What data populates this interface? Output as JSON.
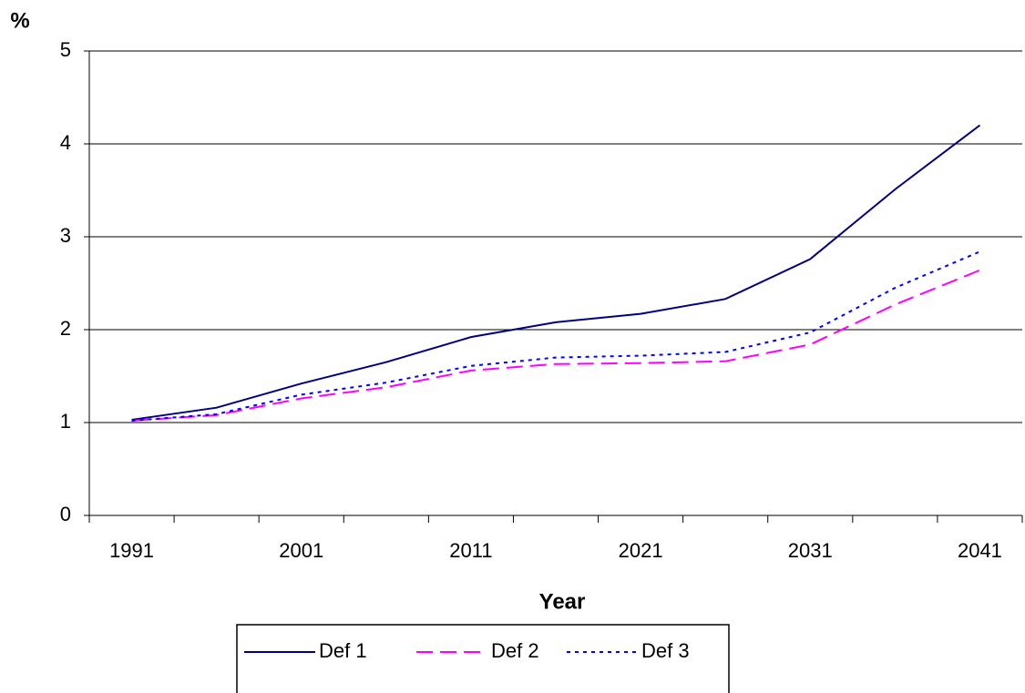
{
  "chart_data": {
    "type": "line",
    "y_label": "%",
    "x_label": "Year",
    "categories": [
      "1991",
      null,
      "2001",
      null,
      "2011",
      null,
      "2021",
      null,
      "2031",
      null,
      "2041"
    ],
    "series": [
      {
        "name": "Def 1",
        "color": "#000080",
        "dash": "solid",
        "values": [
          1.03,
          1.16,
          1.42,
          1.65,
          1.92,
          2.08,
          2.17,
          2.33,
          2.76,
          3.51,
          4.2
        ]
      },
      {
        "name": "Def 2",
        "color": "#ff00ff",
        "dash": "dashed",
        "values": [
          1.02,
          1.08,
          1.26,
          1.38,
          1.56,
          1.63,
          1.64,
          1.66,
          1.84,
          2.27,
          2.64
        ]
      },
      {
        "name": "Def 3",
        "color": "#0000ff",
        "dash": "dotted",
        "values": [
          1.02,
          1.09,
          1.3,
          1.43,
          1.61,
          1.7,
          1.72,
          1.76,
          1.97,
          2.45,
          2.84
        ]
      }
    ],
    "ylim": [
      0,
      5
    ],
    "yticks": [
      0,
      1,
      2,
      3,
      4,
      5
    ],
    "grid": true,
    "legend": "bottom"
  }
}
